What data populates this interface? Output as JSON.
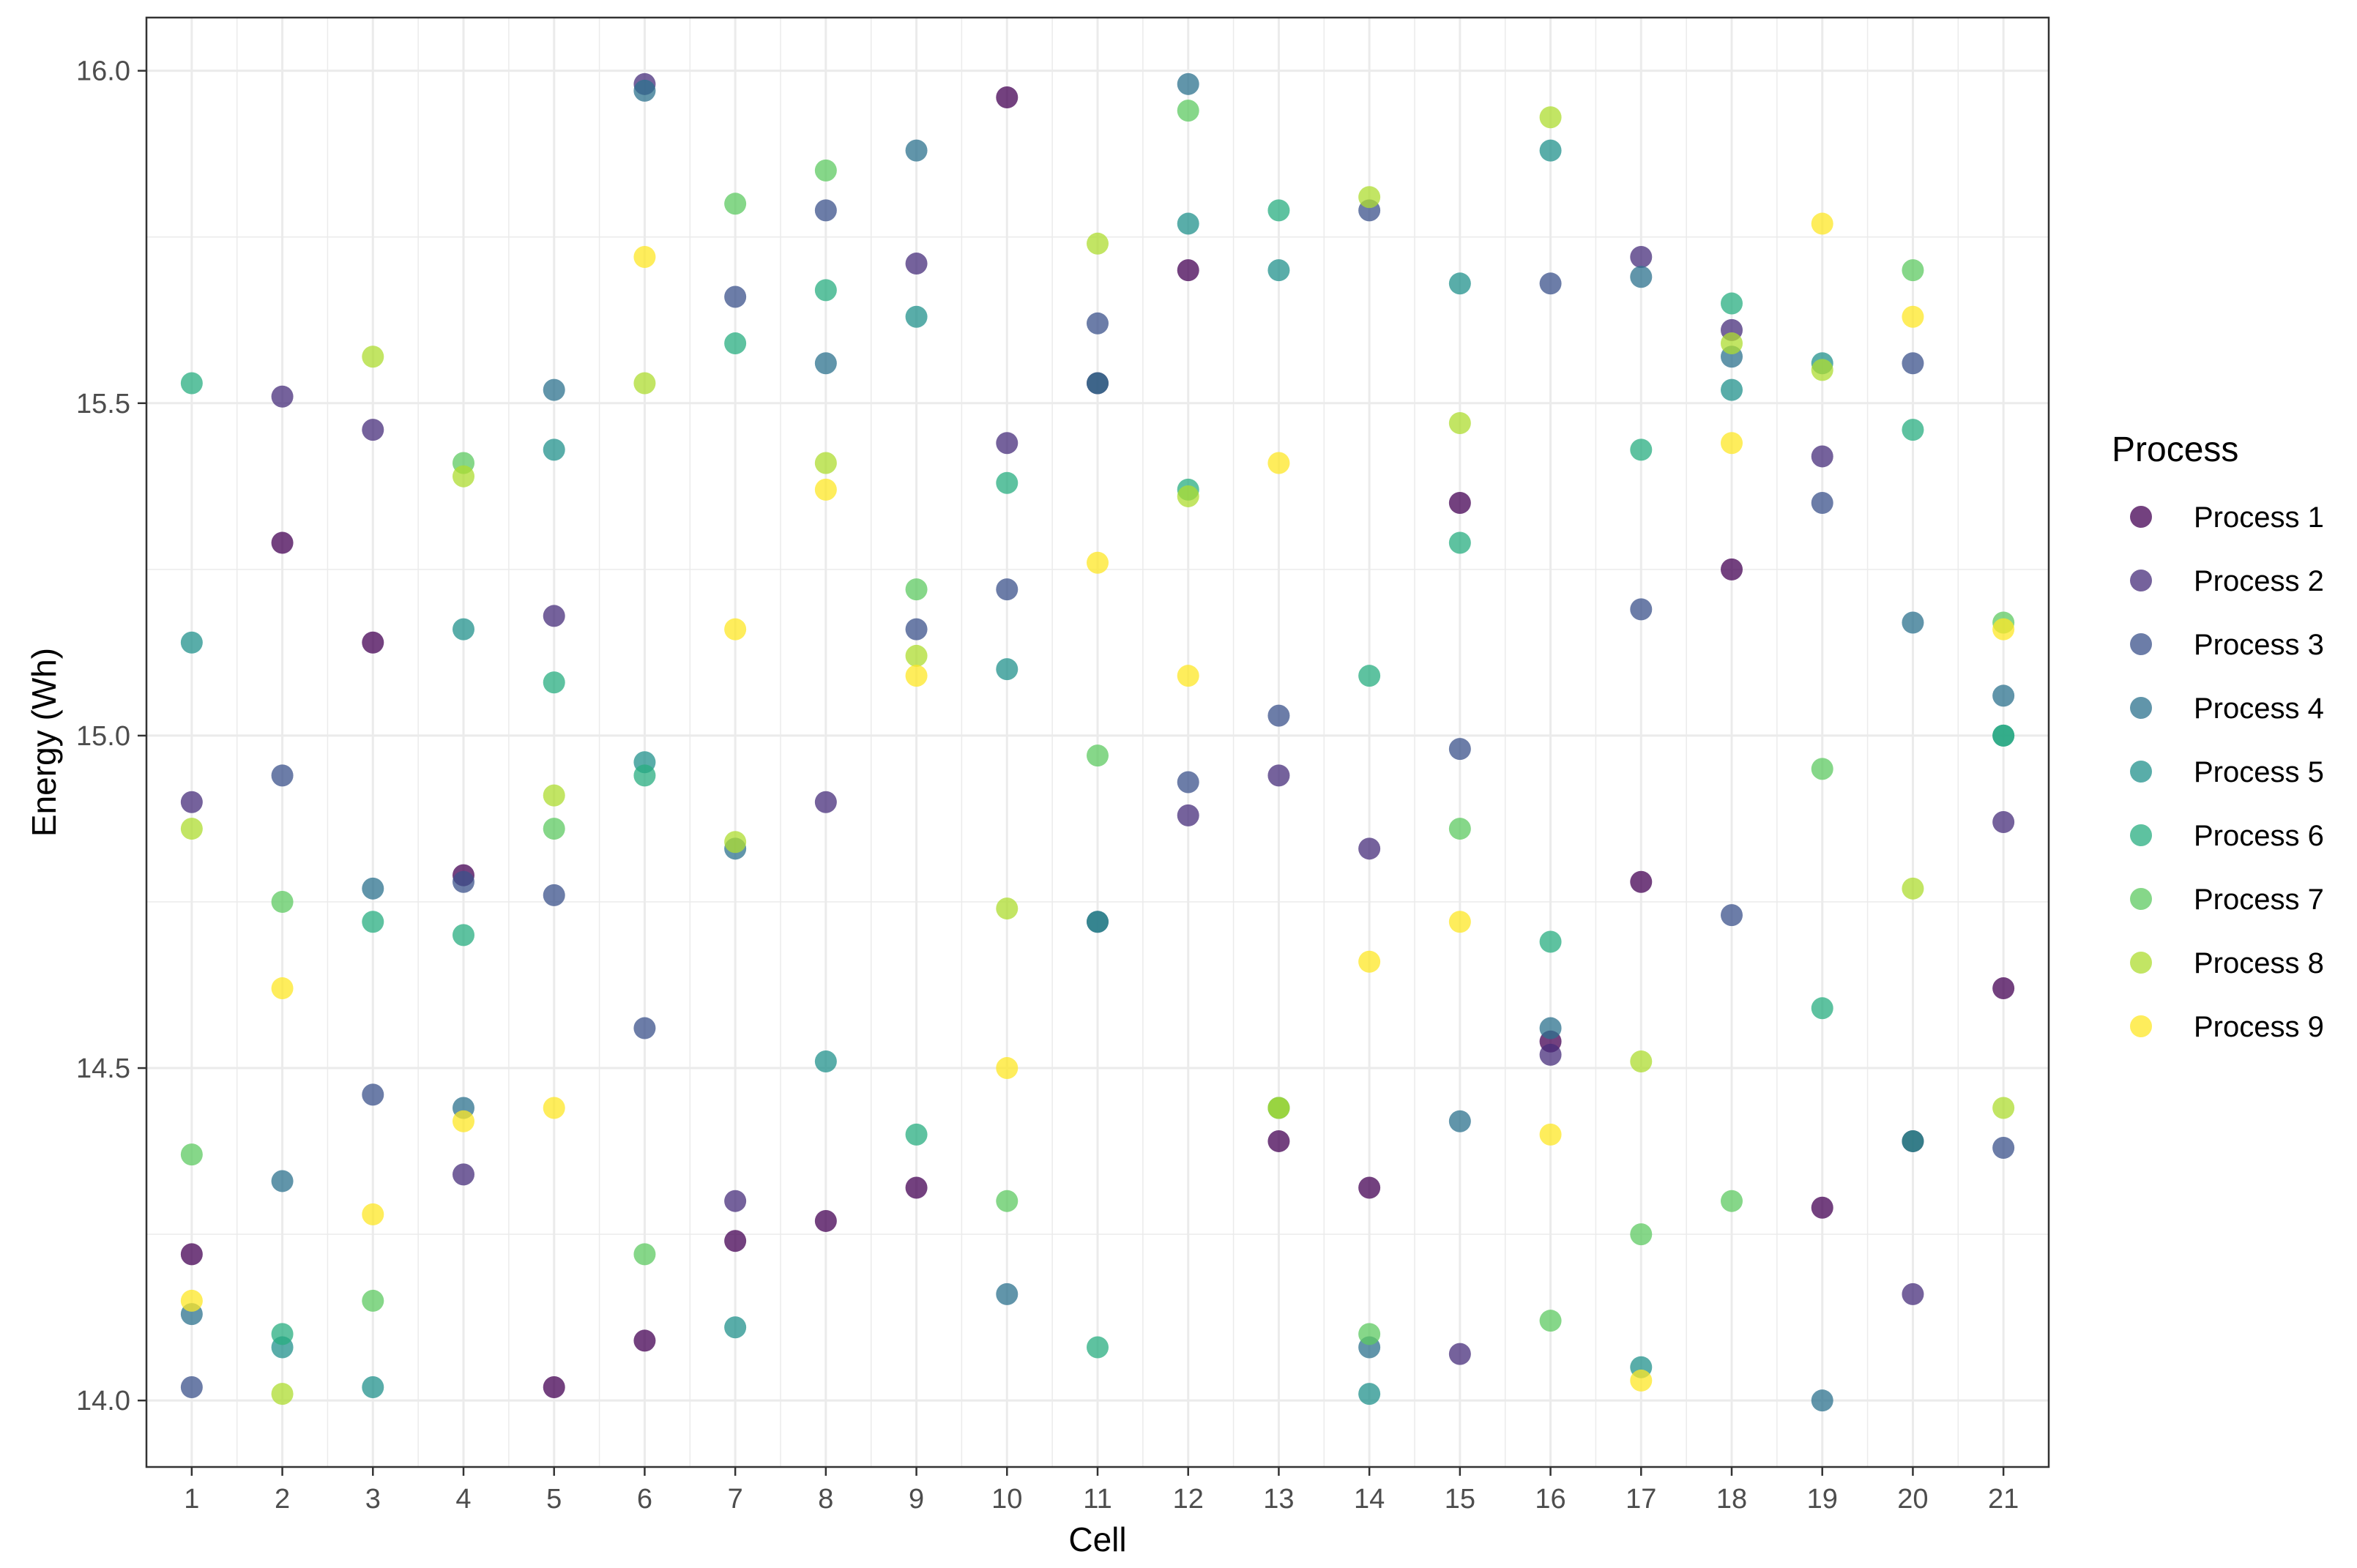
{
  "chart_data": {
    "type": "scatter",
    "xlabel": "Cell",
    "ylabel": "Energy (Wh)",
    "x_categories": [
      "1",
      "2",
      "3",
      "4",
      "5",
      "6",
      "7",
      "8",
      "9",
      "10",
      "11",
      "12",
      "13",
      "14",
      "15",
      "16",
      "17",
      "18",
      "19",
      "20",
      "21"
    ],
    "xlim": [
      0.5,
      21.5
    ],
    "ylim": [
      13.9,
      16.08
    ],
    "y_ticks": [
      14.0,
      14.5,
      15.0,
      15.5,
      16.0
    ],
    "y_tick_labels": [
      "14.0",
      "14.5",
      "15.0",
      "15.5",
      "16.0"
    ],
    "grid": true,
    "legend": {
      "title": "Process",
      "placement": "right"
    },
    "series": [
      {
        "name": "Process 1",
        "color": "#440154",
        "values": [
          14.22,
          15.29,
          15.14,
          14.79,
          14.02,
          14.09,
          14.24,
          14.27,
          14.32,
          15.96,
          15.53,
          15.7,
          14.39,
          14.32,
          15.35,
          14.54,
          14.78,
          15.25,
          14.29,
          14.39,
          14.62
        ]
      },
      {
        "name": "Process 2",
        "color": "#472d7b",
        "values": [
          14.9,
          15.51,
          15.46,
          14.34,
          15.18,
          15.98,
          14.3,
          14.9,
          15.71,
          15.44,
          14.72,
          14.88,
          14.94,
          14.83,
          14.07,
          14.52,
          15.72,
          15.61,
          15.42,
          14.16,
          14.87
        ]
      },
      {
        "name": "Process 3",
        "color": "#3b528b",
        "values": [
          14.02,
          14.94,
          14.46,
          14.78,
          14.76,
          14.56,
          15.66,
          15.79,
          15.16,
          15.22,
          15.62,
          14.93,
          15.03,
          15.79,
          14.98,
          15.68,
          15.19,
          14.73,
          15.35,
          15.56,
          14.38
        ]
      },
      {
        "name": "Process 4",
        "color": "#2c728e",
        "values": [
          14.13,
          14.33,
          14.77,
          14.44,
          15.52,
          15.97,
          14.83,
          15.56,
          15.88,
          14.16,
          15.53,
          15.98,
          14.44,
          14.08,
          14.42,
          14.56,
          15.69,
          15.57,
          14.0,
          15.17,
          15.06
        ]
      },
      {
        "name": "Process 5",
        "color": "#21918c",
        "values": [
          15.14,
          14.08,
          14.02,
          15.16,
          15.43,
          14.96,
          14.11,
          14.51,
          15.63,
          15.1,
          14.72,
          15.77,
          15.7,
          14.01,
          15.68,
          15.88,
          14.05,
          15.52,
          15.56,
          14.39,
          15.0
        ]
      },
      {
        "name": "Process 6",
        "color": "#28ae80",
        "values": [
          15.53,
          14.1,
          14.72,
          14.7,
          15.08,
          14.94,
          15.59,
          15.67,
          14.4,
          15.38,
          14.08,
          15.37,
          15.79,
          15.09,
          15.29,
          14.69,
          15.43,
          15.65,
          14.59,
          15.46,
          15.0
        ]
      },
      {
        "name": "Process 7",
        "color": "#5ec962",
        "values": [
          14.37,
          14.75,
          14.15,
          15.41,
          14.86,
          14.22,
          15.8,
          15.85,
          15.22,
          14.3,
          14.97,
          15.94,
          14.44,
          14.1,
          14.86,
          14.12,
          14.25,
          14.3,
          14.95,
          15.7,
          15.17
        ]
      },
      {
        "name": "Process 8",
        "color": "#addc30",
        "values": [
          14.86,
          14.01,
          15.57,
          15.39,
          14.91,
          15.53,
          14.84,
          15.41,
          15.12,
          14.74,
          15.74,
          15.36,
          14.44,
          15.81,
          15.47,
          15.93,
          14.51,
          15.59,
          15.55,
          14.77,
          14.44
        ]
      },
      {
        "name": "Process 9",
        "color": "#fde725",
        "values": [
          14.15,
          14.62,
          14.28,
          14.42,
          14.44,
          15.72,
          15.16,
          15.37,
          15.09,
          14.5,
          15.26,
          15.09,
          15.41,
          14.66,
          14.72,
          14.4,
          14.03,
          15.44,
          15.77,
          15.63,
          15.16
        ]
      }
    ]
  }
}
